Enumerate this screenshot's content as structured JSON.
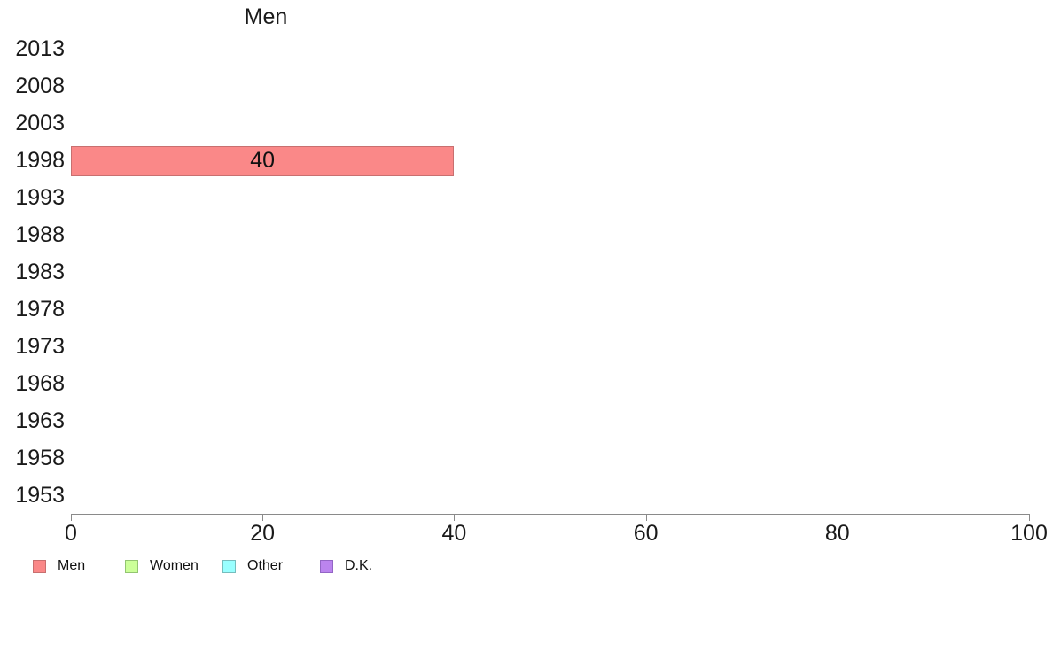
{
  "title": "Men",
  "chart_data": {
    "type": "bar",
    "orientation": "horizontal",
    "title": "Men",
    "categories": [
      "2013",
      "2008",
      "2003",
      "1998",
      "1993",
      "1988",
      "1983",
      "1978",
      "1973",
      "1968",
      "1963",
      "1958",
      "1953"
    ],
    "series": [
      {
        "name": "Men",
        "values": [
          null,
          null,
          null,
          40,
          null,
          null,
          null,
          null,
          null,
          null,
          null,
          null,
          null
        ]
      }
    ],
    "bar_fill": "#fa8888",
    "bar_border": "#c86f6f",
    "xlabel": "",
    "ylabel": "",
    "xlim": [
      0,
      100
    ],
    "x_ticks": [
      0,
      20,
      40,
      60,
      80,
      100
    ],
    "grid": false,
    "legend_position": "bottom"
  },
  "legend": {
    "items": [
      {
        "label": "Men",
        "fill": "#fa8888",
        "border": "#c86f6f"
      },
      {
        "label": "Women",
        "fill": "#ccff99",
        "border": "#93c571"
      },
      {
        "label": "Other",
        "fill": "#99ffff",
        "border": "#76bdbd"
      },
      {
        "label": "D.K.",
        "fill": "#bb84ee",
        "border": "#9365c5"
      }
    ]
  },
  "colors": {
    "background": "#ffffff",
    "text": "#1a1a1a",
    "axis": "#8a8a8a"
  }
}
